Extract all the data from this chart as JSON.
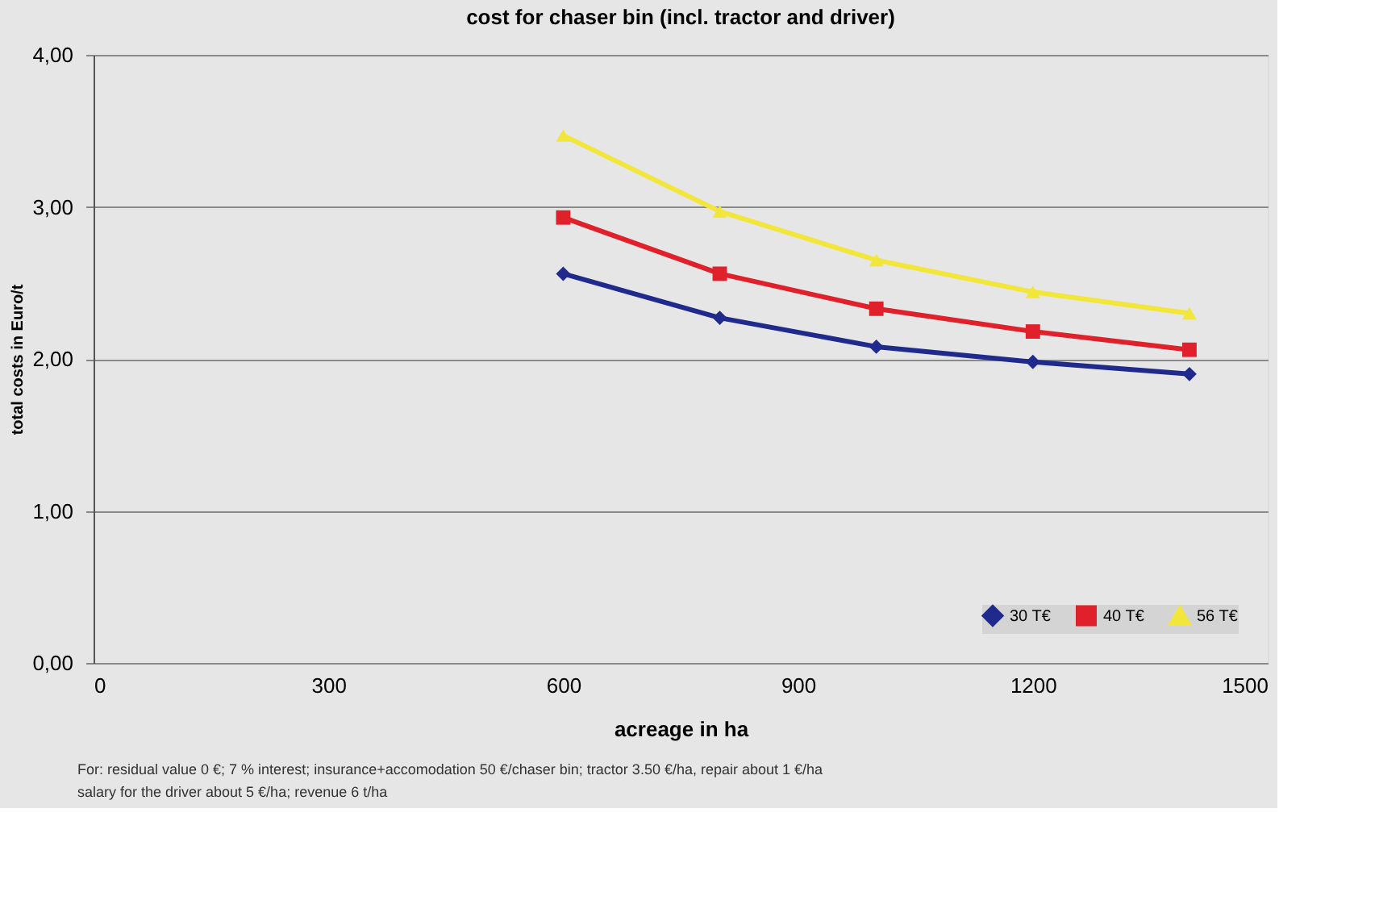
{
  "chart_data": {
    "type": "line",
    "title": "cost for chaser bin (incl. tractor and driver)",
    "xlabel": "acreage in ha",
    "ylabel": "total costs in Euro/t",
    "x": [
      600,
      800,
      1000,
      1200,
      1400
    ],
    "series": [
      {
        "name": "30 T€",
        "color": "#1f2a8c",
        "marker": "diamond",
        "values": [
          2.56,
          2.27,
          2.08,
          1.98,
          1.9
        ]
      },
      {
        "name": "40 T€",
        "color": "#e0202a",
        "marker": "square",
        "values": [
          2.93,
          2.56,
          2.33,
          2.18,
          2.06
        ]
      },
      {
        "name": "56 T€",
        "color": "#f2e63a",
        "marker": "triangle",
        "values": [
          3.47,
          2.97,
          2.65,
          2.44,
          2.3
        ]
      }
    ],
    "xlim": [
      0,
      1500
    ],
    "xticks": [
      0,
      300,
      600,
      900,
      1200,
      1500
    ],
    "ylim": [
      0,
      4
    ],
    "yticks": [
      {
        "value": 0,
        "label": "0,00"
      },
      {
        "value": 1,
        "label": "1,00"
      },
      {
        "value": 2,
        "label": "2,00"
      },
      {
        "value": 3,
        "label": "3,00"
      },
      {
        "value": 4,
        "label": "4,00"
      }
    ],
    "grid": "y",
    "legend": "bottom right",
    "line_style": "solid",
    "annotations": [
      "For: residual value 0 €; 7 % interest; insurance+accomodation 50 €/chaser bin; tractor 3.50 €/ha, repair about 1 €/ha",
      "salary for the driver about 5 €/ha; revenue 6 t/ha"
    ]
  }
}
